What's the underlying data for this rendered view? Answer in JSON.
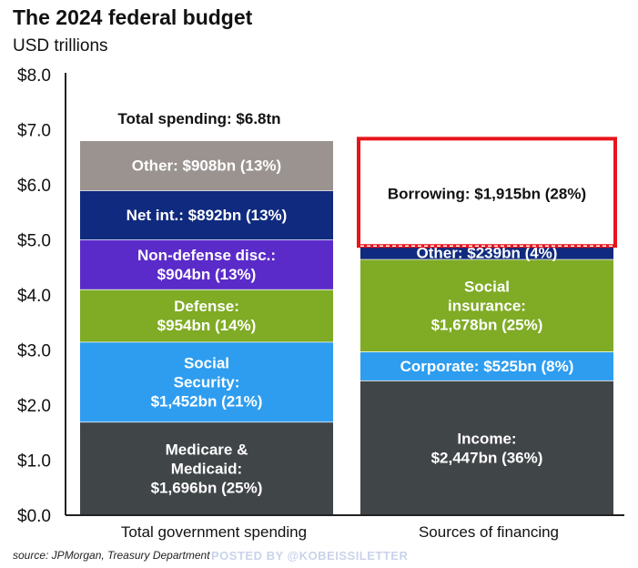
{
  "header": {
    "title": "The 2024 federal budget",
    "subtitle": "USD trillions"
  },
  "footer": {
    "source": "source: JPMorgan, Treasury Department",
    "watermark": "POSTED BY @KOBEISSILETTER"
  },
  "chart_data": {
    "type": "bar",
    "stacked": true,
    "title": "The 2024 federal budget",
    "ylabel": "USD trillions",
    "ylim": [
      0,
      8
    ],
    "yticks": [
      0,
      1,
      2,
      3,
      4,
      5,
      6,
      7,
      8
    ],
    "ytick_labels": [
      "$0.0",
      "$1.0",
      "$2.0",
      "$3.0",
      "$4.0",
      "$5.0",
      "$6.0",
      "$7.0",
      "$8.0"
    ],
    "grid": false,
    "categories": [
      "Total government spending",
      "Sources of financing"
    ],
    "total_label": "Total spending: $6.8tn",
    "bars": [
      {
        "category": "Total government spending",
        "segments": [
          {
            "name": "Medicare & Medicaid",
            "value": 1.696,
            "label": [
              "Medicare &",
              "Medicaid:",
              "$1,696bn (25%)"
            ],
            "color": "#404548",
            "text_color": "#ffffff"
          },
          {
            "name": "Social Security",
            "value": 1.452,
            "label": [
              "Social",
              "Security:",
              "$1,452bn (21%)"
            ],
            "color": "#2e9df0",
            "text_color": "#ffffff"
          },
          {
            "name": "Defense",
            "value": 0.954,
            "label": [
              "Defense:",
              "$954bn (14%)"
            ],
            "color": "#7fab25",
            "text_color": "#ffffff"
          },
          {
            "name": "Non-defense disc.",
            "value": 0.904,
            "label": [
              "Non-defense disc.:",
              "$904bn (13%)"
            ],
            "color": "#5a2bc9",
            "text_color": "#ffffff"
          },
          {
            "name": "Net int.",
            "value": 0.892,
            "label": [
              "Net int.: $892bn (13%)"
            ],
            "color": "#0f2a7e",
            "text_color": "#ffffff"
          },
          {
            "name": "Other",
            "value": 0.908,
            "label": [
              "Other: $908bn (13%)"
            ],
            "color": "#9b9390",
            "text_color": "#ffffff"
          }
        ]
      },
      {
        "category": "Sources of financing",
        "segments": [
          {
            "name": "Income",
            "value": 2.447,
            "label": [
              "Income:",
              "$2,447bn (36%)"
            ],
            "color": "#404548",
            "text_color": "#ffffff"
          },
          {
            "name": "Corporate",
            "value": 0.525,
            "label": [
              "Corporate: $525bn (8%)"
            ],
            "color": "#2e9df0",
            "text_color": "#ffffff"
          },
          {
            "name": "Social insurance",
            "value": 1.678,
            "label": [
              "Social",
              "insurance:",
              "$1,678bn (25%)"
            ],
            "color": "#7fab25",
            "text_color": "#ffffff"
          },
          {
            "name": "Other",
            "value": 0.239,
            "label": [
              "Other: $239bn (4%)"
            ],
            "color": "#0f2a7e",
            "text_color": "#ffffff"
          },
          {
            "name": "Borrowing",
            "value": 1.915,
            "label": [
              "Borrowing: $1,915bn (28%)"
            ],
            "color": "#ffffff",
            "text_color": "#111111",
            "highlight_color": "#e8141b"
          }
        ]
      }
    ]
  }
}
